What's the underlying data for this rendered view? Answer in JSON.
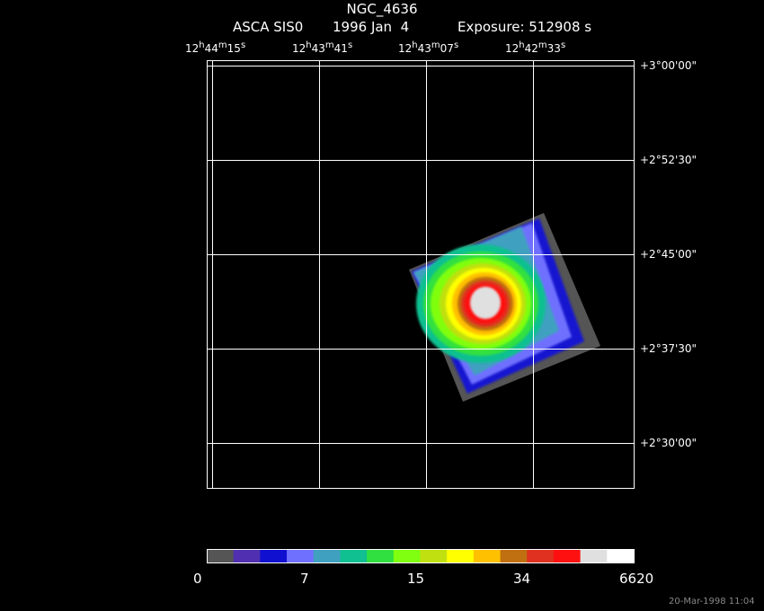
{
  "header": {
    "object": "NGC_4636",
    "instrument": "ASCA SIS0",
    "date": "1996 Jan  4",
    "exposure": "Exposure: 512908 s"
  },
  "ra_labels": [
    {
      "h": "12",
      "m": "44",
      "s": "15"
    },
    {
      "h": "12",
      "m": "43",
      "s": "41"
    },
    {
      "h": "12",
      "m": "43",
      "s": "07"
    },
    {
      "h": "12",
      "m": "42",
      "s": "33"
    }
  ],
  "dec_labels": [
    "+3°00'00\"",
    "+2°52'30\"",
    "+2°45'00\"",
    "+2°37'30\"",
    "+2°30'00\""
  ],
  "colorbar": {
    "colors": [
      "#555555",
      "#5030b0",
      "#1010d0",
      "#7070ff",
      "#40a0c0",
      "#10c090",
      "#30e040",
      "#80ff10",
      "#c0e010",
      "#ffff00",
      "#ffc000",
      "#c07010",
      "#e03020",
      "#ff1010",
      "#e0e0e0",
      "#ffffff"
    ],
    "labels": [
      "0",
      "7",
      "15",
      "34",
      "6620"
    ]
  },
  "footer": {
    "timestamp": "20-Mar-1998 11:04"
  }
}
